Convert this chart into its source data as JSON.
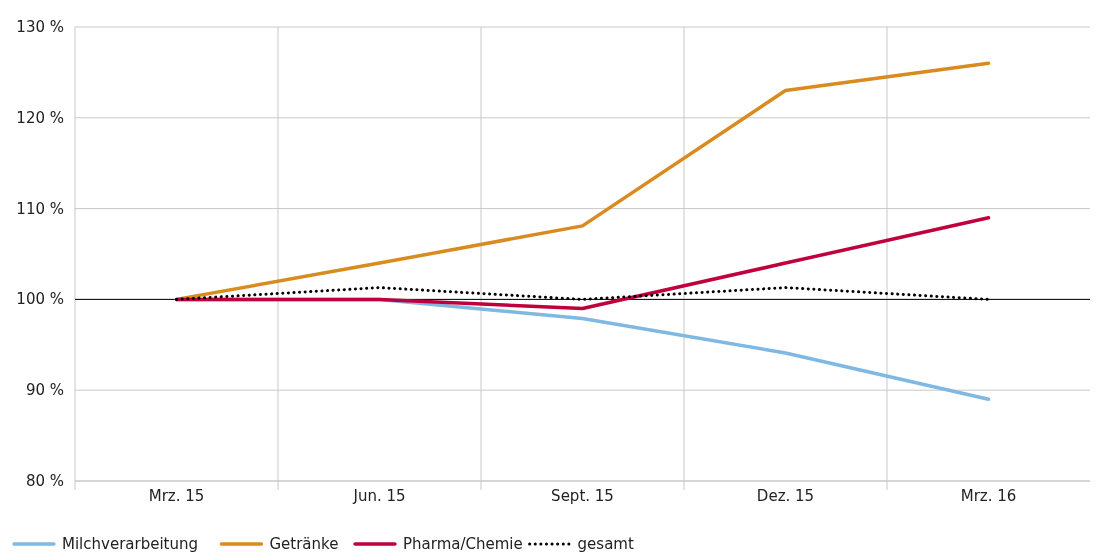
{
  "chart_data": {
    "type": "line",
    "categories": [
      "Mrz. 15",
      "Jun. 15",
      "Sept. 15",
      "Dez. 15",
      "Mrz. 16"
    ],
    "series": [
      {
        "name": "Milchverarbeitung",
        "color": "#7fb8e3",
        "values": [
          100,
          100,
          97.9,
          94.1,
          89
        ]
      },
      {
        "name": "Getränke",
        "color": "#d98b1e",
        "values": [
          100,
          104,
          108.1,
          123,
          126
        ]
      },
      {
        "name": "Pharma/Chemie",
        "color": "#c0003c",
        "values": [
          100,
          100,
          99,
          104,
          109
        ]
      },
      {
        "name": "gesamt",
        "color": "#000000",
        "line_style": "dotted",
        "values": [
          100,
          101.3,
          100,
          101.3,
          100
        ]
      }
    ],
    "ylim": [
      80,
      130
    ],
    "yticks": [
      {
        "value": 80,
        "label": "80 %"
      },
      {
        "value": 90,
        "label": "90 %"
      },
      {
        "value": 100,
        "label": "100 %"
      },
      {
        "value": 110,
        "label": "110 %"
      },
      {
        "value": 120,
        "label": "120 %"
      },
      {
        "value": 130,
        "label": "130 %"
      }
    ],
    "ref_lines": [
      {
        "axis": "y",
        "value": 100,
        "color": "#000000"
      }
    ],
    "grid": true,
    "legend": "bottom left",
    "line_style": "solid",
    "marker": "none"
  }
}
